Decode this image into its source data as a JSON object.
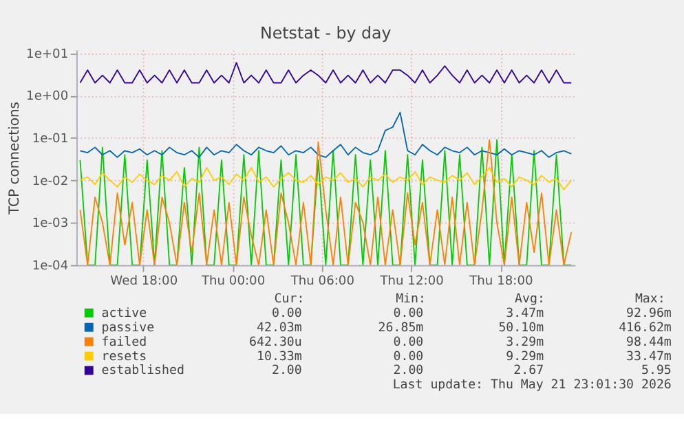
{
  "chart_data": {
    "type": "line",
    "title": "Netstat - by day",
    "ylabel": "TCP connections",
    "x": [
      "2026-05-20T13:45",
      "2026-05-20T14:15",
      "2026-05-20T14:45",
      "2026-05-20T15:15",
      "2026-05-20T15:45",
      "2026-05-20T16:15",
      "2026-05-20T16:45",
      "2026-05-20T17:15",
      "2026-05-20T17:45",
      "2026-05-20T18:15",
      "2026-05-20T18:45",
      "2026-05-20T19:15",
      "2026-05-20T19:45",
      "2026-05-20T20:15",
      "2026-05-20T20:45",
      "2026-05-20T21:15",
      "2026-05-20T21:45",
      "2026-05-20T22:15",
      "2026-05-20T22:45",
      "2026-05-20T23:15",
      "2026-05-20T23:45",
      "2026-05-21T00:15",
      "2026-05-21T00:45",
      "2026-05-21T01:15",
      "2026-05-21T01:45",
      "2026-05-21T02:15",
      "2026-05-21T02:45",
      "2026-05-21T03:15",
      "2026-05-21T03:45",
      "2026-05-21T04:15",
      "2026-05-21T04:45",
      "2026-05-21T05:15",
      "2026-05-21T05:45",
      "2026-05-21T06:15",
      "2026-05-21T06:45",
      "2026-05-21T07:15",
      "2026-05-21T07:45",
      "2026-05-21T08:15",
      "2026-05-21T08:45",
      "2026-05-21T09:15",
      "2026-05-21T09:45",
      "2026-05-21T10:15",
      "2026-05-21T10:45",
      "2026-05-21T11:15",
      "2026-05-21T11:45",
      "2026-05-21T12:15",
      "2026-05-21T12:45",
      "2026-05-21T13:15",
      "2026-05-21T13:45",
      "2026-05-21T14:15",
      "2026-05-21T14:45",
      "2026-05-21T15:15",
      "2026-05-21T15:45",
      "2026-05-21T16:15",
      "2026-05-21T16:45",
      "2026-05-21T17:15",
      "2026-05-21T17:45",
      "2026-05-21T18:15",
      "2026-05-21T18:45",
      "2026-05-21T19:15",
      "2026-05-21T19:45",
      "2026-05-21T20:15",
      "2026-05-21T20:45",
      "2026-05-21T21:15",
      "2026-05-21T21:45",
      "2026-05-21T22:15",
      "2026-05-21T22:45"
    ],
    "series": [
      {
        "name": "active",
        "color": "#00cc00",
        "values": [
          0.03,
          0.0001,
          0.0001,
          0.06,
          0.0001,
          0.0001,
          0.04,
          0.0001,
          0.0001,
          0.03,
          0.0001,
          0.05,
          0.0001,
          0.0001,
          0.02,
          0.0001,
          0.06,
          0.0001,
          0.0001,
          0.03,
          0.0001,
          0.0001,
          0.04,
          0.0001,
          0.05,
          0.0001,
          0.0001,
          0.03,
          0.0001,
          0.04,
          0.0001,
          0.0001,
          0.03,
          0.0001,
          0.05,
          0.0001,
          0.0001,
          0.04,
          0.0001,
          0.03,
          0.0001,
          0.05,
          0.0001,
          0.0001,
          0.04,
          0.0001,
          0.03,
          0.0001,
          0.0001,
          0.05,
          0.0001,
          0.04,
          0.0001,
          0.0001,
          0.06,
          0.0001,
          0.09,
          0.0001,
          0.04,
          0.0001,
          0.0001,
          0.05,
          0.0001,
          0.0001,
          0.04,
          0.0001,
          0.0001
        ]
      },
      {
        "name": "passive",
        "color": "#0066b3",
        "values": [
          0.05,
          0.045,
          0.06,
          0.04,
          0.05,
          0.035,
          0.05,
          0.045,
          0.055,
          0.04,
          0.05,
          0.04,
          0.06,
          0.045,
          0.04,
          0.05,
          0.035,
          0.06,
          0.04,
          0.05,
          0.045,
          0.07,
          0.05,
          0.04,
          0.06,
          0.05,
          0.045,
          0.065,
          0.04,
          0.05,
          0.045,
          0.06,
          0.04,
          0.035,
          0.05,
          0.07,
          0.04,
          0.06,
          0.045,
          0.04,
          0.05,
          0.15,
          0.18,
          0.4,
          0.05,
          0.04,
          0.07,
          0.05,
          0.04,
          0.06,
          0.05,
          0.045,
          0.06,
          0.04,
          0.05,
          0.045,
          0.04,
          0.055,
          0.04,
          0.05,
          0.045,
          0.04,
          0.05,
          0.035,
          0.045,
          0.05,
          0.042
        ]
      },
      {
        "name": "failed",
        "color": "#ff8000",
        "values": [
          0.002,
          0.0001,
          0.004,
          0.001,
          0.0001,
          0.005,
          0.0003,
          0.003,
          0.0001,
          0.002,
          0.0001,
          0.004,
          0.001,
          0.0001,
          0.003,
          0.0002,
          0.005,
          0.0001,
          0.002,
          0.0001,
          0.003,
          0.0001,
          0.004,
          0.0005,
          0.0001,
          0.002,
          0.0001,
          0.005,
          0.001,
          0.0001,
          0.003,
          0.0001,
          0.08,
          0.002,
          0.0001,
          0.004,
          0.0001,
          0.003,
          0.001,
          0.0001,
          0.004,
          0.0001,
          0.002,
          0.0001,
          0.005,
          0.0003,
          0.003,
          0.0001,
          0.002,
          0.0001,
          0.004,
          0.0001,
          0.003,
          0.0001,
          0.002,
          0.09,
          0.001,
          0.0001,
          0.004,
          0.0001,
          0.003,
          0.0002,
          0.005,
          0.0001,
          0.002,
          0.0001,
          0.0006
        ]
      },
      {
        "name": "resets",
        "color": "#ffcc00",
        "values": [
          0.01,
          0.012,
          0.008,
          0.015,
          0.01,
          0.007,
          0.012,
          0.009,
          0.014,
          0.01,
          0.008,
          0.013,
          0.01,
          0.016,
          0.007,
          0.011,
          0.009,
          0.02,
          0.01,
          0.012,
          0.008,
          0.014,
          0.01,
          0.02,
          0.009,
          0.012,
          0.007,
          0.011,
          0.015,
          0.01,
          0.009,
          0.013,
          0.008,
          0.012,
          0.01,
          0.015,
          0.009,
          0.011,
          0.007,
          0.012,
          0.01,
          0.014,
          0.009,
          0.012,
          0.01,
          0.016,
          0.008,
          0.012,
          0.01,
          0.009,
          0.013,
          0.01,
          0.015,
          0.008,
          0.012,
          0.02,
          0.009,
          0.011,
          0.007,
          0.012,
          0.01,
          0.008,
          0.013,
          0.009,
          0.011,
          0.006,
          0.01
        ]
      },
      {
        "name": "established",
        "color": "#330099",
        "values": [
          2,
          4,
          2,
          3,
          2,
          4,
          2,
          2,
          4,
          2,
          3,
          2,
          4,
          2,
          4,
          2,
          2,
          4,
          2,
          3,
          2,
          6,
          2,
          3,
          2,
          4,
          2,
          2,
          4,
          2,
          3,
          4,
          3,
          2,
          4,
          2,
          3,
          2,
          4,
          2,
          3,
          2,
          4,
          4,
          3,
          2,
          4,
          2,
          3,
          5,
          3,
          2,
          4,
          2,
          3,
          2,
          4,
          2,
          4,
          2,
          3,
          2,
          4,
          2,
          4,
          2,
          2
        ]
      }
    ],
    "log": "y",
    "ylim": [
      0.0001,
      12
    ],
    "yticks": [
      {
        "value": 0.0001,
        "label": "1e-04"
      },
      {
        "value": 0.001,
        "label": "1e-03"
      },
      {
        "value": 0.01,
        "label": "1e-02"
      },
      {
        "value": 0.1,
        "label": "1e-01"
      },
      {
        "value": 1,
        "label": "1e+00"
      },
      {
        "value": 10,
        "label": "1e+01"
      }
    ],
    "xlim": [
      "2026-05-20T13:30",
      "2026-05-21T23:00"
    ],
    "xticks": [
      {
        "value": "2026-05-20T18:00",
        "label": "Wed 18:00"
      },
      {
        "value": "2026-05-21T00:00",
        "label": "Thu 00:00"
      },
      {
        "value": "2026-05-21T06:00",
        "label": "Thu 06:00"
      },
      {
        "value": "2026-05-21T12:00",
        "label": "Thu 12:00"
      },
      {
        "value": "2026-05-21T18:00",
        "label": "Thu 18:00"
      }
    ],
    "grid": true,
    "legend": "bottom",
    "annotations": [
      "Cur:",
      "Min:",
      "Avg:",
      "Max:",
      "0.00",
      "0.00",
      "3.47m",
      "92.96m",
      "42.03m",
      "26.85m",
      "50.10m",
      "416.62m",
      "642.30u",
      "0.00",
      "3.29m",
      "98.44m",
      "10.33m",
      "0.00",
      "9.29m",
      "33.47m",
      "2.00",
      "2.00",
      "2.67",
      "5.95",
      "Last update: Thu May 21 23:01:30 2026"
    ]
  }
}
